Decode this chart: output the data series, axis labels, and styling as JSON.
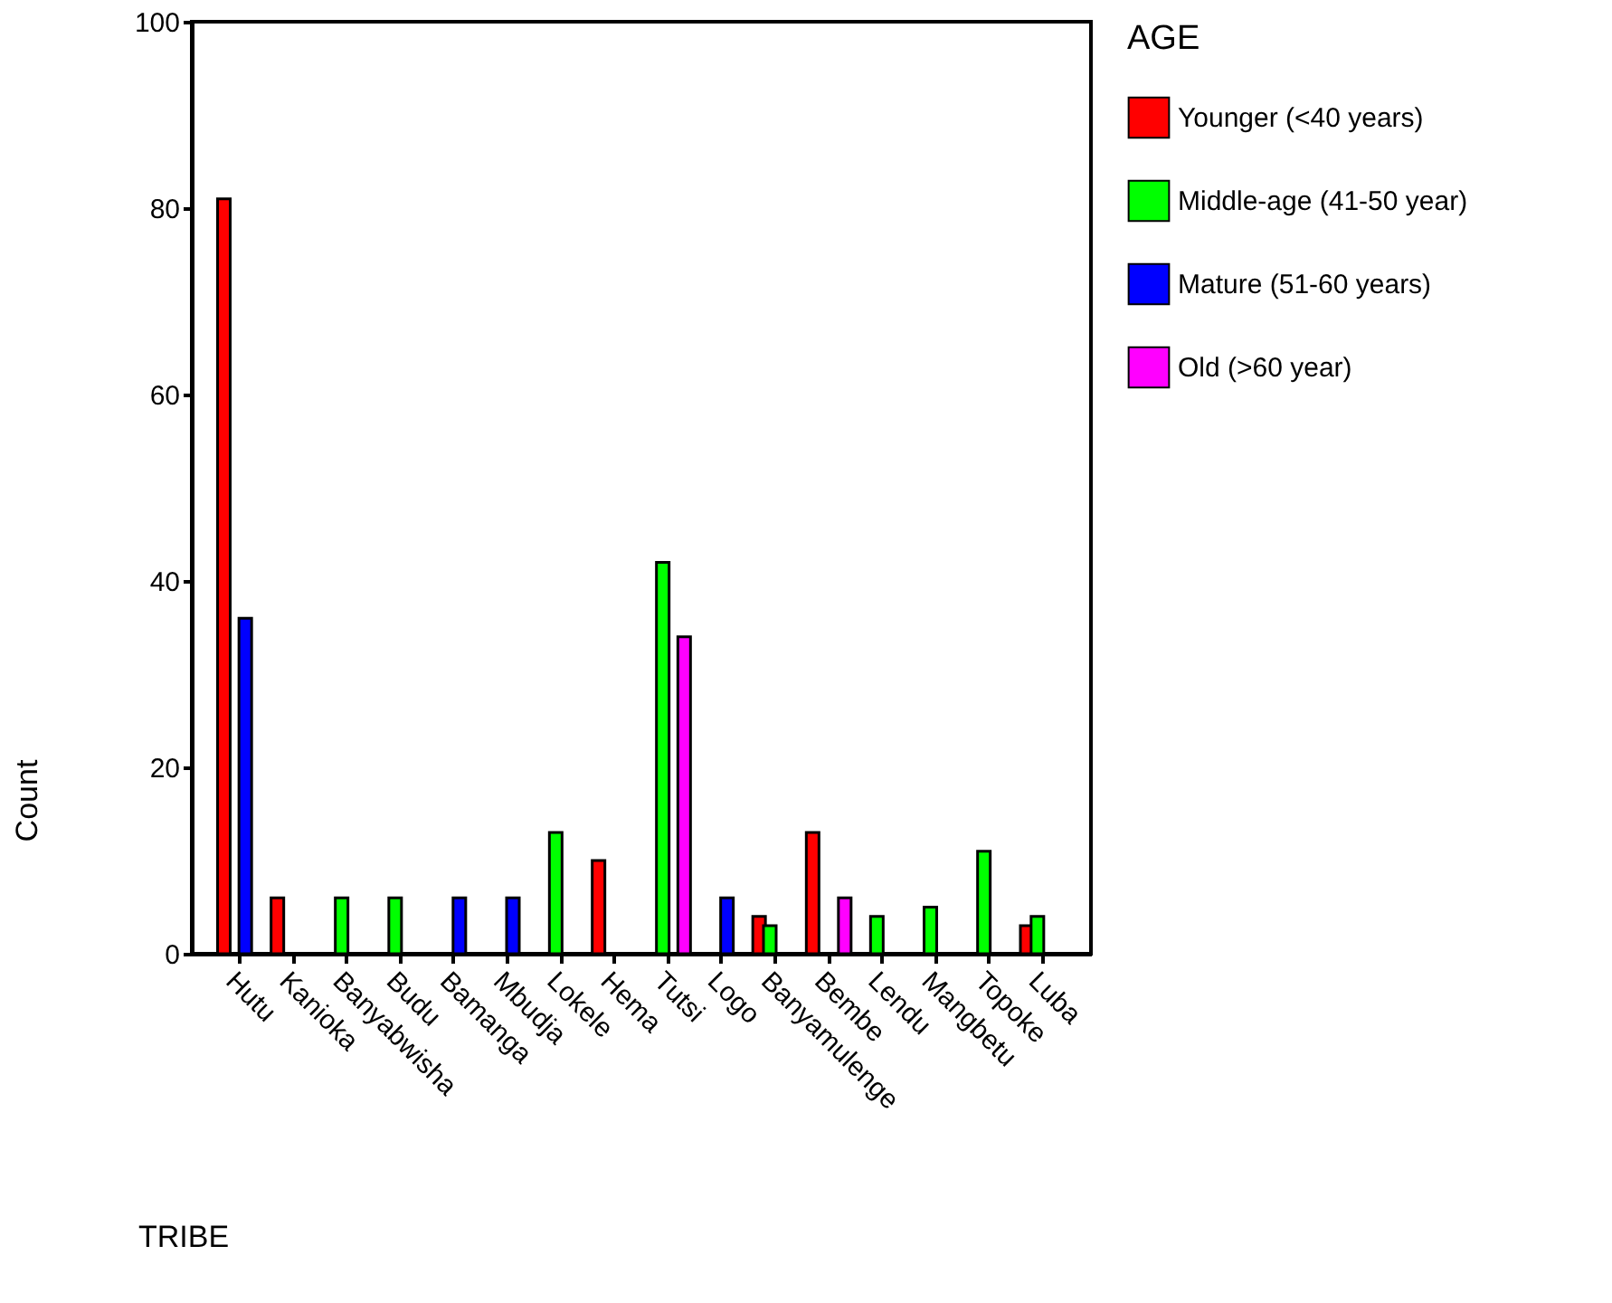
{
  "chart_data": {
    "type": "bar",
    "xlabel": "TRIBE",
    "ylabel": "Count",
    "legend_title": "AGE",
    "legend": "right",
    "grid": false,
    "categories": [
      "Hutu",
      "Kanioka",
      "Banyabwisha",
      "Budu",
      "Bamanga",
      "Mbudja",
      "Lokele",
      "Hema",
      "Tutsi",
      "Logo",
      "Banyamulenge",
      "Bembe",
      "Lendu",
      "Mangbetu",
      "Topoke",
      "Luba"
    ],
    "series": [
      {
        "name": "Younger (<40 years)",
        "color": "#ff0000",
        "values": [
          81,
          6,
          null,
          null,
          null,
          null,
          null,
          10,
          null,
          null,
          4,
          13,
          null,
          null,
          null,
          3
        ]
      },
      {
        "name": "Middle-age (41-50 year)",
        "color": "#00ff00",
        "values": [
          null,
          null,
          6,
          6,
          null,
          null,
          13,
          null,
          42,
          null,
          3,
          null,
          4,
          5,
          11,
          4
        ]
      },
      {
        "name": "Mature (51-60 years)",
        "color": "#0000ff",
        "values": [
          36,
          null,
          null,
          null,
          6,
          6,
          null,
          null,
          null,
          6,
          null,
          null,
          null,
          null,
          null,
          null
        ]
      },
      {
        "name": "Old (>60 year)",
        "color": "#ff00ff",
        "values": [
          null,
          null,
          null,
          null,
          null,
          null,
          null,
          null,
          34,
          null,
          null,
          6,
          null,
          null,
          null,
          null
        ]
      }
    ],
    "ylim": [
      0,
      100
    ],
    "yticks": [
      0,
      20,
      40,
      60,
      80,
      100
    ]
  }
}
